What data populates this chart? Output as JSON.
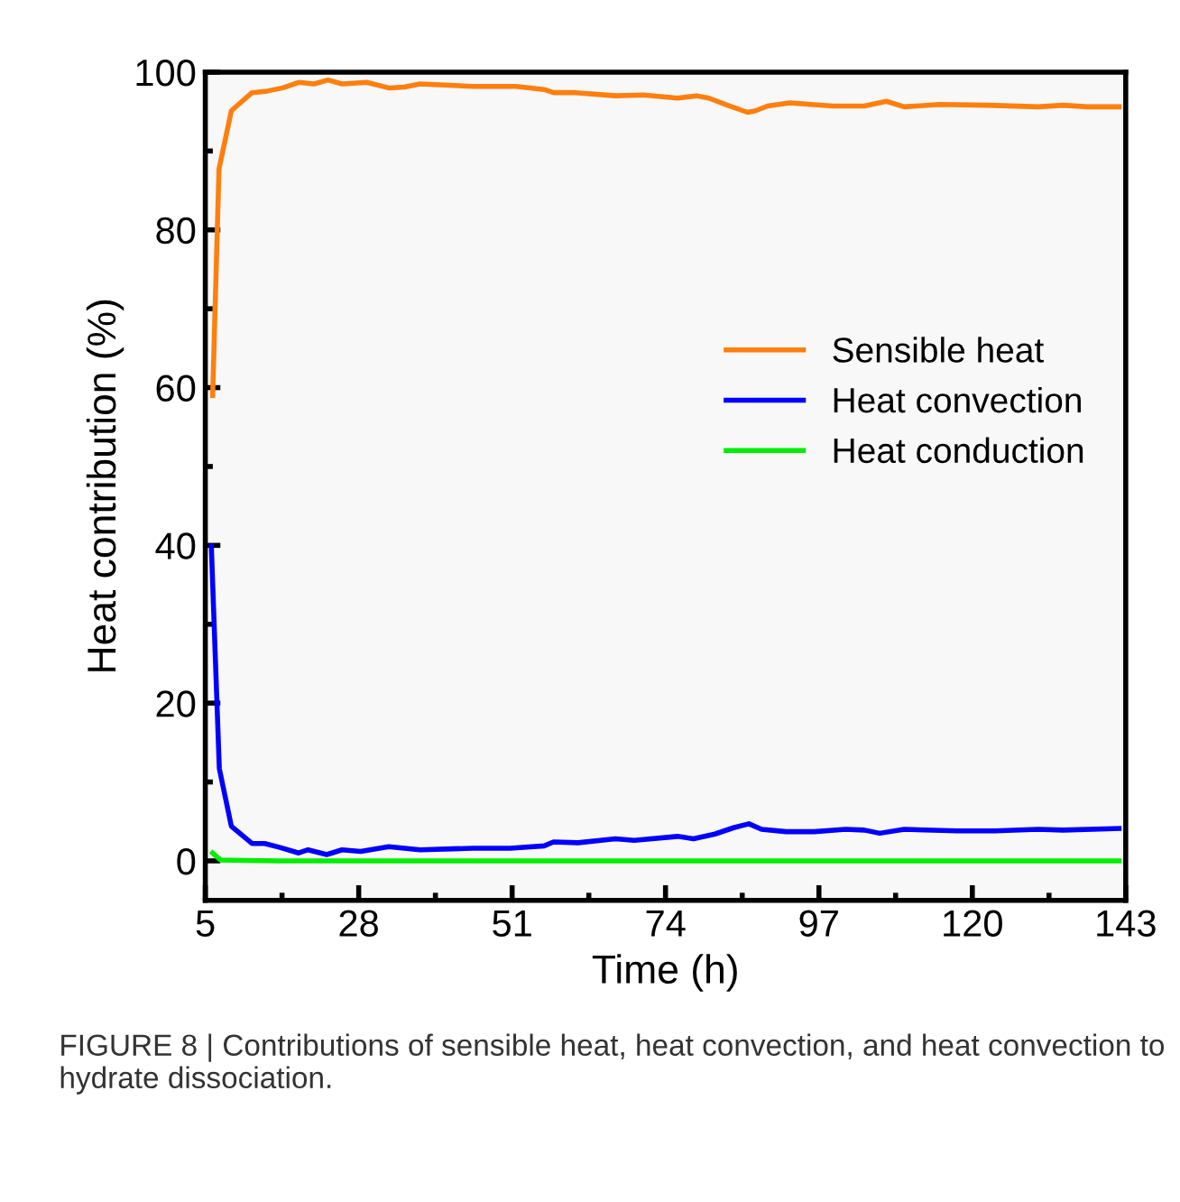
{
  "chart_data": {
    "type": "line",
    "xlabel": "Time (h)",
    "ylabel": "Heat contribution (%)",
    "xlim": [
      5,
      143
    ],
    "xticks": [
      5,
      28,
      51,
      74,
      97,
      120,
      143
    ],
    "ylim": [
      -5,
      100
    ],
    "yticks": [
      0,
      20,
      40,
      60,
      80,
      100
    ],
    "grid": false,
    "legend": "right",
    "marker": "none",
    "line_style": "solid",
    "series": [
      {
        "name": "Sensible heat",
        "color": "#ff7f0e",
        "x": [
          6.1,
          7.05,
          8.9,
          12.0,
          14.3,
          16.6,
          19.0,
          21.3,
          23.4,
          25.5,
          29.2,
          32.5,
          34.8,
          37.2,
          45.1,
          51.6,
          55.8,
          57.2,
          60.5,
          66.5,
          70.7,
          75.8,
          78.6,
          80.5,
          83.3,
          86.3,
          87.5,
          89.3,
          92.6,
          99.1,
          103.8,
          107.1,
          109.8,
          115.0,
          122.4,
          129.9,
          133.6,
          137.3,
          142.0
        ],
        "values": [
          59.0,
          87.7,
          95.1,
          97.4,
          97.6,
          98.0,
          98.7,
          98.5,
          99.0,
          98.5,
          98.7,
          98.0,
          98.1,
          98.5,
          98.2,
          98.2,
          97.8,
          97.4,
          97.4,
          97.0,
          97.1,
          96.7,
          97.0,
          96.7,
          95.8,
          94.9,
          95.1,
          95.7,
          96.1,
          95.7,
          95.7,
          96.3,
          95.6,
          95.9,
          95.8,
          95.6,
          95.8,
          95.6,
          95.6
        ]
      },
      {
        "name": "Heat convection",
        "color": "#0000ff",
        "x": [
          5.9,
          7.1,
          8.9,
          12.0,
          13.9,
          16.2,
          19.0,
          20.4,
          23.2,
          25.5,
          28.3,
          32.5,
          37.2,
          45.1,
          50.7,
          55.8,
          57.2,
          60.9,
          66.5,
          69.3,
          75.8,
          78.2,
          81.4,
          84.2,
          86.5,
          88.4,
          92.1,
          96.3,
          101.0,
          103.8,
          106.1,
          109.8,
          117.8,
          123.4,
          129.9,
          133.6,
          142.0
        ],
        "values": [
          39.9,
          11.7,
          4.4,
          2.2,
          2.2,
          1.7,
          1.0,
          1.4,
          0.8,
          1.4,
          1.2,
          1.8,
          1.4,
          1.6,
          1.6,
          1.9,
          2.4,
          2.3,
          2.8,
          2.6,
          3.1,
          2.8,
          3.4,
          4.2,
          4.7,
          4.0,
          3.7,
          3.7,
          4.0,
          3.9,
          3.5,
          4.0,
          3.8,
          3.8,
          4.0,
          3.9,
          4.1
        ]
      },
      {
        "name": "Heat conduction",
        "color": "#00ee00",
        "x": [
          6.1,
          7.3,
          16.0,
          142.0
        ],
        "values": [
          1.0,
          0.1,
          0.0,
          0.0
        ]
      }
    ],
    "annotations": [
      "FIGURE 8 | Contributions of sensible heat, heat convection, and heat convection to hydrate dissociation."
    ]
  }
}
